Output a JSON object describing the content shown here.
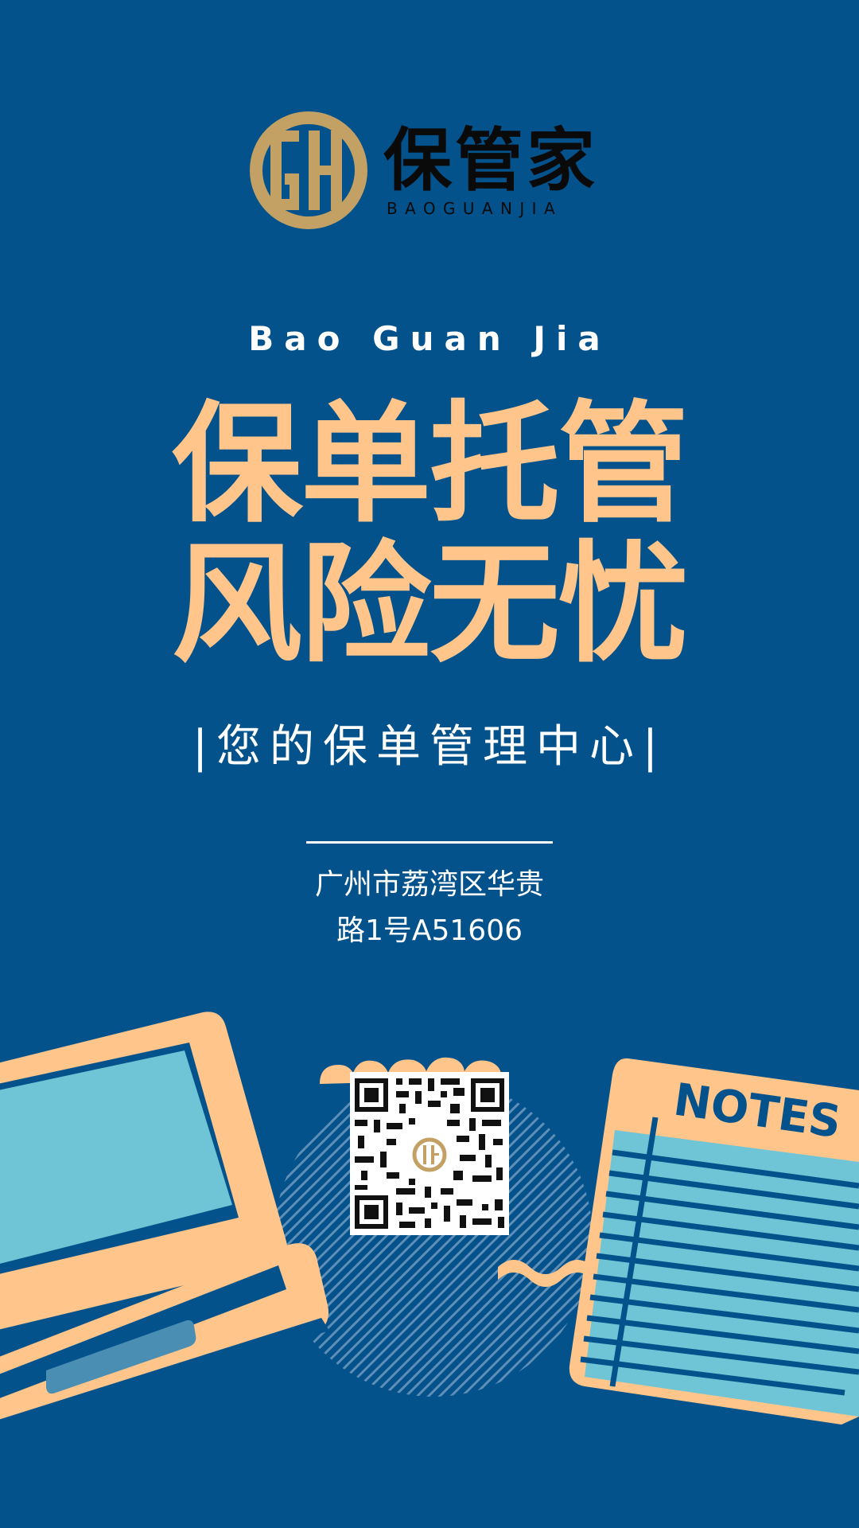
{
  "logo": {
    "name": "保管家",
    "pinyin": "BAOGUANJIA",
    "mark_colors": {
      "gold": "#c3a064",
      "dark": "#0a0a0a"
    }
  },
  "brand_en": "Bao Guan Jia",
  "headline": [
    "保单托管",
    "风险无忧"
  ],
  "tagline": "|您的保单管理中心|",
  "address": [
    "广州市荔湾区华贵",
    "路1号A51606"
  ],
  "notes_label": "NOTES",
  "colors": {
    "background": "#03528b",
    "peach": "#ffc58a",
    "light_blue": "#6fc5d5",
    "dark_blue": "#03528b",
    "white": "#ffffff"
  },
  "icons": [
    "laptop-illustration",
    "notepad-illustration",
    "qr-code"
  ]
}
